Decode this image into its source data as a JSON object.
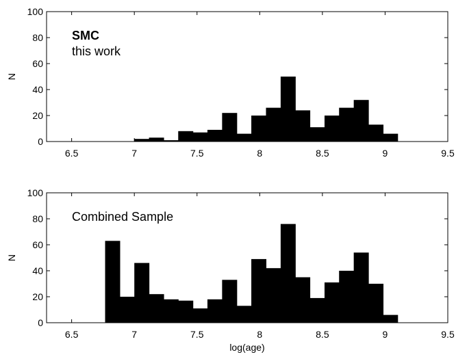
{
  "chart_data": [
    {
      "type": "bar",
      "title": "",
      "xlabel": "",
      "ylabel": "N",
      "xlim": [
        6.3,
        9.5
      ],
      "ylim": [
        0,
        100
      ],
      "xticks": [
        "6.5",
        "7",
        "7.5",
        "8",
        "8.5",
        "9",
        "9.5"
      ],
      "yticks": [
        "0",
        "20",
        "40",
        "60",
        "80",
        "100"
      ],
      "annotations": [
        "SMC",
        "this work"
      ],
      "bin_width": 0.1167,
      "x": [
        7.0,
        7.117,
        7.233,
        7.35,
        7.467,
        7.583,
        7.7,
        7.817,
        7.933,
        8.05,
        8.167,
        8.283,
        8.4,
        8.517,
        8.633,
        8.75,
        8.867,
        8.983,
        9.1
      ],
      "values": [
        2,
        3,
        1,
        8,
        7,
        9,
        22,
        6,
        20,
        26,
        50,
        24,
        11,
        20,
        26,
        32,
        13,
        6,
        0
      ],
      "grid": false
    },
    {
      "type": "bar",
      "title": "",
      "xlabel": "log(age)",
      "ylabel": "N",
      "xlim": [
        6.3,
        9.5
      ],
      "ylim": [
        0,
        100
      ],
      "xticks": [
        "6.5",
        "7",
        "7.5",
        "8",
        "8.5",
        "9",
        "9.5"
      ],
      "yticks": [
        "0",
        "20",
        "40",
        "60",
        "80",
        "100"
      ],
      "annotations": [
        "Combined Sample"
      ],
      "bin_width": 0.1167,
      "x": [
        6.767,
        6.883,
        7.0,
        7.117,
        7.233,
        7.35,
        7.467,
        7.583,
        7.7,
        7.817,
        7.933,
        8.05,
        8.167,
        8.283,
        8.4,
        8.517,
        8.633,
        8.75,
        8.867,
        8.983,
        9.1
      ],
      "values": [
        63,
        20,
        46,
        22,
        18,
        17,
        11,
        18,
        33,
        13,
        49,
        42,
        76,
        35,
        19,
        31,
        40,
        54,
        30,
        6,
        0
      ],
      "grid": false
    }
  ]
}
